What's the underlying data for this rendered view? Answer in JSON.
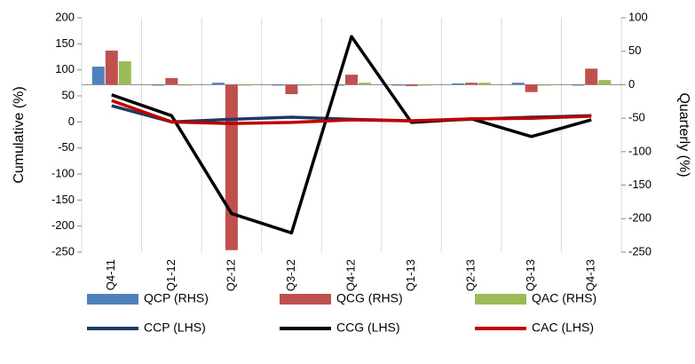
{
  "chart_data": {
    "type": "combo",
    "ylabel": "Cumulative (%)",
    "y2label": "Quarterly (%)",
    "categories": [
      "Q4-11",
      "Q1-12",
      "Q2-12",
      "Q3-12",
      "Q4-12",
      "Q1-13",
      "Q2-13",
      "Q3-13",
      "Q4-13"
    ],
    "ylim": [
      -250,
      200
    ],
    "yticks": [
      -250,
      -200,
      -150,
      -100,
      -50,
      0,
      50,
      100,
      150,
      200
    ],
    "y2lim": [
      -250,
      100
    ],
    "y2ticks": [
      -250,
      -200,
      -150,
      -100,
      -50,
      0,
      50,
      100
    ],
    "series": [
      {
        "name": "QCP (RHS)",
        "mark": "bar",
        "axis": "y2",
        "color": "#4f81bd",
        "values": [
          27,
          0,
          3,
          -1,
          -1,
          0,
          2,
          3,
          0
        ]
      },
      {
        "name": "QCG (RHS)",
        "mark": "bar",
        "axis": "y2",
        "color": "#c0504d",
        "values": [
          51,
          10,
          -247,
          -14,
          15,
          -2,
          3,
          -11,
          24
        ]
      },
      {
        "name": "QAC (RHS)",
        "mark": "bar",
        "axis": "y2",
        "color": "#9bbb59",
        "values": [
          35,
          0,
          -1,
          0,
          3,
          -1,
          3,
          -1,
          7
        ]
      },
      {
        "name": "CCP (LHS)",
        "mark": "line",
        "color": "#1f3864",
        "values": [
          31,
          0,
          5,
          9,
          5,
          2,
          5,
          9,
          12
        ]
      },
      {
        "name": "CCG (LHS)",
        "mark": "line",
        "color": "#000000",
        "values": [
          52,
          12,
          -176,
          -213,
          164,
          -1,
          6,
          -28,
          4
        ]
      },
      {
        "name": "CAC (LHS)",
        "mark": "line",
        "color": "#c00000",
        "values": [
          41,
          0,
          -3,
          -1,
          4,
          2,
          6,
          7,
          11
        ]
      }
    ]
  }
}
